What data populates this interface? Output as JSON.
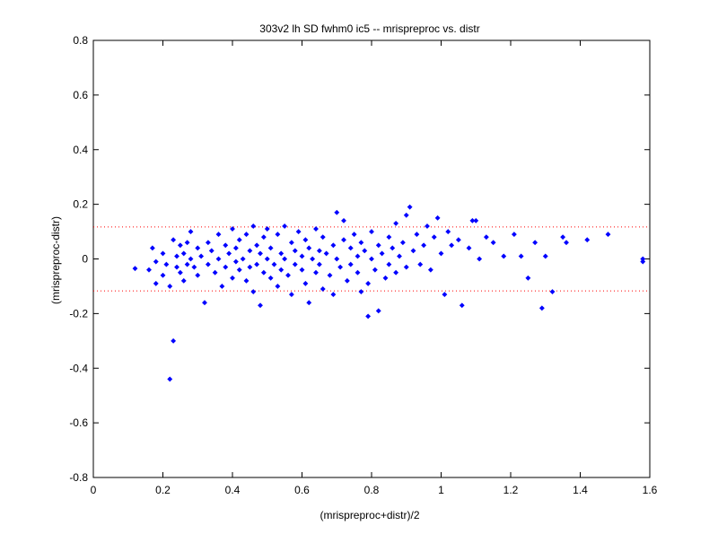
{
  "chart_data": {
    "type": "scatter",
    "title": "303v2 lh SD fwhm0 ic5 -- mrispreproc vs. distr",
    "xlabel": "(mrispreproc+distr)/2",
    "ylabel": "(mrispreproc-distr)",
    "xlim": [
      0,
      1.6
    ],
    "ylim": [
      -0.8,
      0.8
    ],
    "xticks": [
      0,
      0.2,
      0.4,
      0.6,
      0.8,
      1.0,
      1.2,
      1.4,
      1.6
    ],
    "xtick_labels": [
      "0",
      "0.2",
      "0.4",
      "0.6",
      "0.8",
      "1",
      "1.2",
      "1.4",
      "1.6"
    ],
    "yticks": [
      0.8,
      0.6,
      0.4,
      0.2,
      0,
      -0.2,
      -0.4,
      -0.6,
      -0.8
    ],
    "ytick_labels": [
      "0.8",
      "0.6",
      "0.4",
      "0.2",
      "0",
      "-0.2",
      "-0.4",
      "-0.6",
      "-0.8"
    ],
    "grid": false,
    "marker_color": "#0000ff",
    "limit_line_color": "#ff0000",
    "limit_lines_y": [
      0.117,
      -0.117
    ],
    "points": [
      [
        0.12,
        -0.035
      ],
      [
        0.16,
        -0.04
      ],
      [
        0.17,
        0.04
      ],
      [
        0.18,
        -0.01
      ],
      [
        0.18,
        -0.09
      ],
      [
        0.2,
        0.02
      ],
      [
        0.2,
        -0.06
      ],
      [
        0.21,
        -0.02
      ],
      [
        0.22,
        -0.1
      ],
      [
        0.22,
        -0.44
      ],
      [
        0.23,
        0.07
      ],
      [
        0.23,
        -0.3
      ],
      [
        0.24,
        0.01
      ],
      [
        0.24,
        -0.03
      ],
      [
        0.25,
        0.05
      ],
      [
        0.25,
        -0.05
      ],
      [
        0.26,
        0.02
      ],
      [
        0.26,
        -0.08
      ],
      [
        0.27,
        0.06
      ],
      [
        0.27,
        -0.02
      ],
      [
        0.28,
        0.1
      ],
      [
        0.28,
        0.0
      ],
      [
        0.29,
        -0.03
      ],
      [
        0.3,
        0.04
      ],
      [
        0.3,
        -0.06
      ],
      [
        0.31,
        0.01
      ],
      [
        0.32,
        -0.16
      ],
      [
        0.33,
        0.06
      ],
      [
        0.33,
        -0.02
      ],
      [
        0.34,
        0.03
      ],
      [
        0.35,
        -0.05
      ],
      [
        0.36,
        0.09
      ],
      [
        0.36,
        0.0
      ],
      [
        0.37,
        -0.1
      ],
      [
        0.38,
        0.05
      ],
      [
        0.38,
        -0.03
      ],
      [
        0.39,
        0.02
      ],
      [
        0.4,
        0.11
      ],
      [
        0.4,
        -0.07
      ],
      [
        0.41,
        0.04
      ],
      [
        0.41,
        -0.01
      ],
      [
        0.42,
        0.07
      ],
      [
        0.42,
        -0.04
      ],
      [
        0.43,
        0.0
      ],
      [
        0.44,
        0.09
      ],
      [
        0.44,
        -0.08
      ],
      [
        0.45,
        0.03
      ],
      [
        0.45,
        -0.03
      ],
      [
        0.46,
        0.12
      ],
      [
        0.46,
        -0.12
      ],
      [
        0.47,
        0.05
      ],
      [
        0.47,
        -0.02
      ],
      [
        0.48,
        0.02
      ],
      [
        0.48,
        -0.17
      ],
      [
        0.49,
        0.08
      ],
      [
        0.49,
        -0.05
      ],
      [
        0.5,
        0.0
      ],
      [
        0.5,
        0.11
      ],
      [
        0.51,
        -0.07
      ],
      [
        0.51,
        0.04
      ],
      [
        0.52,
        -0.02
      ],
      [
        0.53,
        0.09
      ],
      [
        0.53,
        -0.1
      ],
      [
        0.54,
        0.02
      ],
      [
        0.54,
        -0.04
      ],
      [
        0.55,
        0.12
      ],
      [
        0.55,
        0.0
      ],
      [
        0.56,
        -0.06
      ],
      [
        0.57,
        0.06
      ],
      [
        0.57,
        -0.13
      ],
      [
        0.58,
        0.03
      ],
      [
        0.58,
        -0.02
      ],
      [
        0.59,
        0.1
      ],
      [
        0.6,
        -0.04
      ],
      [
        0.6,
        0.01
      ],
      [
        0.61,
        0.07
      ],
      [
        0.61,
        -0.09
      ],
      [
        0.62,
        0.04
      ],
      [
        0.62,
        -0.16
      ],
      [
        0.63,
        0.0
      ],
      [
        0.64,
        0.11
      ],
      [
        0.64,
        -0.05
      ],
      [
        0.65,
        0.03
      ],
      [
        0.65,
        -0.02
      ],
      [
        0.66,
        0.08
      ],
      [
        0.66,
        -0.11
      ],
      [
        0.67,
        0.02
      ],
      [
        0.68,
        -0.06
      ],
      [
        0.69,
        0.05
      ],
      [
        0.69,
        -0.13
      ],
      [
        0.7,
        0.17
      ],
      [
        0.7,
        0.0
      ],
      [
        0.71,
        -0.03
      ],
      [
        0.72,
        0.14
      ],
      [
        0.72,
        0.07
      ],
      [
        0.73,
        -0.08
      ],
      [
        0.74,
        0.04
      ],
      [
        0.74,
        -0.02
      ],
      [
        0.75,
        0.09
      ],
      [
        0.76,
        -0.05
      ],
      [
        0.76,
        0.01
      ],
      [
        0.77,
        0.06
      ],
      [
        0.77,
        -0.12
      ],
      [
        0.78,
        0.03
      ],
      [
        0.79,
        -0.09
      ],
      [
        0.79,
        -0.21
      ],
      [
        0.8,
        0.1
      ],
      [
        0.8,
        0.0
      ],
      [
        0.81,
        -0.04
      ],
      [
        0.82,
        0.05
      ],
      [
        0.82,
        -0.19
      ],
      [
        0.83,
        0.02
      ],
      [
        0.84,
        -0.07
      ],
      [
        0.85,
        0.08
      ],
      [
        0.85,
        -0.02
      ],
      [
        0.86,
        0.04
      ],
      [
        0.87,
        -0.05
      ],
      [
        0.87,
        0.13
      ],
      [
        0.88,
        0.01
      ],
      [
        0.89,
        0.06
      ],
      [
        0.9,
        -0.03
      ],
      [
        0.9,
        0.16
      ],
      [
        0.91,
        0.19
      ],
      [
        0.92,
        0.03
      ],
      [
        0.93,
        0.09
      ],
      [
        0.94,
        -0.02
      ],
      [
        0.95,
        0.05
      ],
      [
        0.96,
        0.12
      ],
      [
        0.97,
        -0.04
      ],
      [
        0.98,
        0.08
      ],
      [
        0.99,
        0.15
      ],
      [
        1.0,
        0.02
      ],
      [
        1.01,
        -0.13
      ],
      [
        1.02,
        0.1
      ],
      [
        1.03,
        0.05
      ],
      [
        1.05,
        0.07
      ],
      [
        1.06,
        -0.17
      ],
      [
        1.08,
        0.04
      ],
      [
        1.09,
        0.14
      ],
      [
        1.1,
        0.14
      ],
      [
        1.11,
        0.0
      ],
      [
        1.13,
        0.08
      ],
      [
        1.15,
        0.06
      ],
      [
        1.18,
        0.01
      ],
      [
        1.21,
        0.09
      ],
      [
        1.23,
        0.01
      ],
      [
        1.25,
        -0.07
      ],
      [
        1.27,
        0.06
      ],
      [
        1.29,
        -0.18
      ],
      [
        1.3,
        0.01
      ],
      [
        1.32,
        -0.12
      ],
      [
        1.35,
        0.08
      ],
      [
        1.36,
        0.06
      ],
      [
        1.42,
        0.07
      ],
      [
        1.48,
        0.09
      ],
      [
        1.58,
        -0.01
      ],
      [
        1.58,
        0.0
      ]
    ]
  }
}
